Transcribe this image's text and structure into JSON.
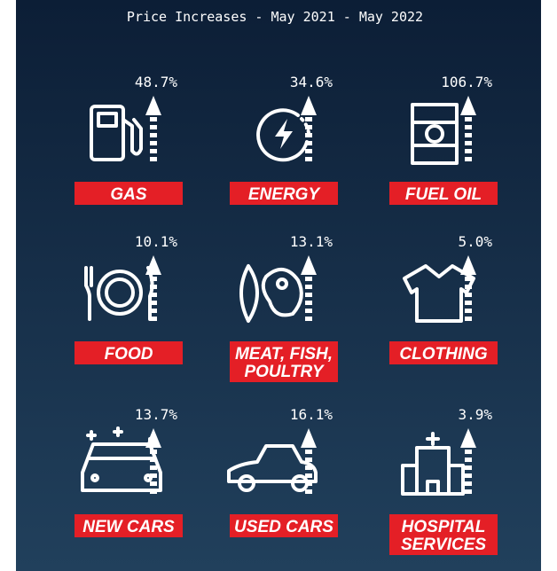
{
  "title": "Price Increases - May 2021 - May 2022",
  "items": [
    {
      "value": "48.7%",
      "label": [
        "GAS"
      ]
    },
    {
      "value": "34.6%",
      "label": [
        "ENERGY"
      ]
    },
    {
      "value": "106.7%",
      "label": [
        "FUEL OIL"
      ]
    },
    {
      "value": "10.1%",
      "label": [
        "FOOD"
      ]
    },
    {
      "value": "13.1%",
      "label": [
        "MEAT, FISH,",
        "POULTRY"
      ]
    },
    {
      "value": "5.0%",
      "label": [
        "CLOTHING"
      ]
    },
    {
      "value": "13.7%",
      "label": [
        "NEW CARS"
      ]
    },
    {
      "value": "16.1%",
      "label": [
        "USED CARS"
      ]
    },
    {
      "value": "3.9%",
      "label": [
        "HOSPITAL",
        "SERVICES"
      ]
    }
  ]
}
